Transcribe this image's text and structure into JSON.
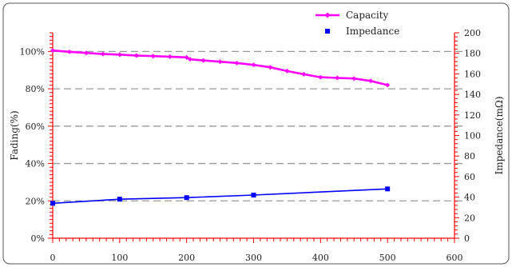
{
  "colors": {
    "capacity": "#ff00ff",
    "impedance": "#0000ff",
    "axis": "#ff0000",
    "grid": "#999999",
    "frame": "#555555"
  },
  "chart_data": {
    "type": "line",
    "xlabel": "",
    "ylabel": "Fading(%)",
    "y2label": "Impedance(mΩ)",
    "xlim": [
      0,
      600
    ],
    "ylim": [
      0,
      110
    ],
    "y2lim": [
      0,
      200
    ],
    "x_ticks": [
      "0",
      "100",
      "200",
      "300",
      "400",
      "500",
      "600"
    ],
    "y_ticks": [
      "0%",
      "20%",
      "40%",
      "60%",
      "80%",
      "100%"
    ],
    "y2_ticks": [
      "0",
      "20",
      "40",
      "60",
      "80",
      "100",
      "120",
      "140",
      "160",
      "180",
      "200"
    ],
    "grid": "horizontal dashed at left-axis major ticks",
    "legend_position": "top-right",
    "series": [
      {
        "name": "Capacity",
        "axis": "left",
        "marker": "diamond",
        "x": [
          0,
          25,
          50,
          75,
          100,
          125,
          150,
          175,
          200,
          205,
          225,
          250,
          275,
          300,
          325,
          350,
          375,
          400,
          425,
          450,
          475,
          500
        ],
        "y": [
          100.5,
          99.8,
          99.2,
          98.6,
          98.3,
          97.8,
          97.5,
          97.2,
          96.8,
          95.8,
          95.2,
          94.5,
          93.8,
          92.8,
          91.5,
          89.5,
          87.8,
          86.2,
          85.8,
          85.5,
          84.2,
          82.0
        ]
      },
      {
        "name": "Impedance",
        "axis": "right",
        "marker": "square",
        "x": [
          0,
          100,
          200,
          300,
          500
        ],
        "y": [
          34,
          38,
          39.5,
          42,
          48
        ]
      }
    ]
  }
}
